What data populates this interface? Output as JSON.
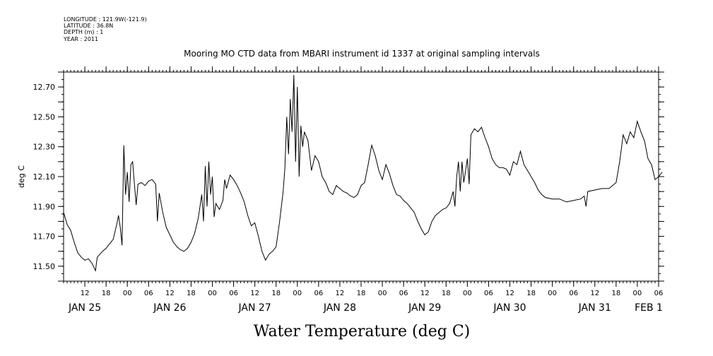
{
  "header": {
    "longitude": "LONGITUDE : 121.9W(-121.9)",
    "latitude": "LATITUDE : 36.8N",
    "depth": "DEPTH (m) : 1",
    "year": "YEAR : 2011"
  },
  "chart_data": {
    "type": "line",
    "title": "Mooring MO CTD data from MBARI instrument id 1337 at original sampling intervals",
    "xlabel": "Water Temperature (deg C)",
    "ylabel": "deg C",
    "ylim": [
      11.4,
      12.8
    ],
    "xlim": [
      "2011-01-25T06:00",
      "2011-02-01T06:00"
    ],
    "y_ticks": [
      "11.50",
      "11.70",
      "11.90",
      "12.10",
      "12.30",
      "12.50",
      "12.70"
    ],
    "x_hour_ticks": [
      "12",
      "18",
      "00",
      "06",
      "12",
      "18",
      "00",
      "06",
      "12",
      "18",
      "00",
      "06",
      "12",
      "18",
      "00",
      "06",
      "12",
      "18",
      "00",
      "06",
      "12",
      "18",
      "00",
      "06",
      "12",
      "18",
      "00",
      "06"
    ],
    "x_day_labels": [
      "JAN 25",
      "JAN 26",
      "JAN 27",
      "JAN 28",
      "JAN 29",
      "JAN 30",
      "JAN 31",
      "FEB 1"
    ],
    "grid": false,
    "series": [
      {
        "values": [
          [
            "2011-01-25T06:00",
            11.86
          ],
          [
            "2011-01-25T07:00",
            11.78
          ],
          [
            "2011-01-25T08:00",
            11.74
          ],
          [
            "2011-01-25T09:00",
            11.66
          ],
          [
            "2011-01-25T10:00",
            11.59
          ],
          [
            "2011-01-25T11:00",
            11.56
          ],
          [
            "2011-01-25T12:00",
            11.54
          ],
          [
            "2011-01-25T13:00",
            11.55
          ],
          [
            "2011-01-25T14:00",
            11.52
          ],
          [
            "2011-01-25T15:00",
            11.47
          ],
          [
            "2011-01-25T15:30",
            11.56
          ],
          [
            "2011-01-25T17:00",
            11.6
          ],
          [
            "2011-01-25T18:00",
            11.62
          ],
          [
            "2011-01-25T19:00",
            11.65
          ],
          [
            "2011-01-25T20:00",
            11.68
          ],
          [
            "2011-01-25T21:00",
            11.78
          ],
          [
            "2011-01-25T21:30",
            11.84
          ],
          [
            "2011-01-25T22:00",
            11.76
          ],
          [
            "2011-01-25T22:30",
            11.64
          ],
          [
            "2011-01-25T23:00",
            12.31
          ],
          [
            "2011-01-25T23:30",
            11.98
          ],
          [
            "2011-01-26T00:00",
            12.13
          ],
          [
            "2011-01-26T00:30",
            11.93
          ],
          [
            "2011-01-26T01:00",
            12.18
          ],
          [
            "2011-01-26T01:30",
            12.2
          ],
          [
            "2011-01-26T02:00",
            12.05
          ],
          [
            "2011-01-26T02:30",
            11.91
          ],
          [
            "2011-01-26T03:00",
            12.05
          ],
          [
            "2011-01-26T04:00",
            12.06
          ],
          [
            "2011-01-26T05:00",
            12.04
          ],
          [
            "2011-01-26T06:00",
            12.07
          ],
          [
            "2011-01-26T07:00",
            12.08
          ],
          [
            "2011-01-26T08:00",
            12.05
          ],
          [
            "2011-01-26T08:30",
            11.8
          ],
          [
            "2011-01-26T09:00",
            11.99
          ],
          [
            "2011-01-26T10:00",
            11.86
          ],
          [
            "2011-01-26T11:00",
            11.76
          ],
          [
            "2011-01-26T12:00",
            11.71
          ],
          [
            "2011-01-26T13:00",
            11.66
          ],
          [
            "2011-01-26T14:00",
            11.63
          ],
          [
            "2011-01-26T15:00",
            11.61
          ],
          [
            "2011-01-26T16:00",
            11.6
          ],
          [
            "2011-01-26T17:00",
            11.62
          ],
          [
            "2011-01-26T18:00",
            11.66
          ],
          [
            "2011-01-26T19:00",
            11.72
          ],
          [
            "2011-01-26T20:00",
            11.82
          ],
          [
            "2011-01-26T21:00",
            11.98
          ],
          [
            "2011-01-26T21:30",
            11.8
          ],
          [
            "2011-01-26T22:00",
            12.17
          ],
          [
            "2011-01-26T22:30",
            11.9
          ],
          [
            "2011-01-26T23:00",
            12.2
          ],
          [
            "2011-01-26T23:30",
            11.98
          ],
          [
            "2011-01-27T00:00",
            12.1
          ],
          [
            "2011-01-27T00:30",
            11.83
          ],
          [
            "2011-01-27T01:00",
            11.92
          ],
          [
            "2011-01-27T02:00",
            11.88
          ],
          [
            "2011-01-27T03:00",
            11.94
          ],
          [
            "2011-01-27T03:30",
            12.08
          ],
          [
            "2011-01-27T04:00",
            12.02
          ],
          [
            "2011-01-27T05:00",
            12.11
          ],
          [
            "2011-01-27T06:00",
            12.08
          ],
          [
            "2011-01-27T07:00",
            12.04
          ],
          [
            "2011-01-27T08:00",
            11.99
          ],
          [
            "2011-01-27T09:00",
            11.93
          ],
          [
            "2011-01-27T10:00",
            11.84
          ],
          [
            "2011-01-27T11:00",
            11.77
          ],
          [
            "2011-01-27T12:00",
            11.79
          ],
          [
            "2011-01-27T13:00",
            11.7
          ],
          [
            "2011-01-27T14:00",
            11.6
          ],
          [
            "2011-01-27T15:00",
            11.54
          ],
          [
            "2011-01-27T16:00",
            11.58
          ],
          [
            "2011-01-27T17:00",
            11.6
          ],
          [
            "2011-01-27T18:00",
            11.63
          ],
          [
            "2011-01-27T19:00",
            11.8
          ],
          [
            "2011-01-27T20:00",
            12.0
          ],
          [
            "2011-01-27T20:30",
            12.16
          ],
          [
            "2011-01-27T21:00",
            12.5
          ],
          [
            "2011-01-27T21:30",
            12.25
          ],
          [
            "2011-01-27T22:00",
            12.62
          ],
          [
            "2011-01-27T22:30",
            12.4
          ],
          [
            "2011-01-27T23:00",
            12.78
          ],
          [
            "2011-01-27T23:30",
            12.2
          ],
          [
            "2011-01-28T00:00",
            12.7
          ],
          [
            "2011-01-28T00:30",
            12.1
          ],
          [
            "2011-01-28T01:00",
            12.44
          ],
          [
            "2011-01-28T01:30",
            12.3
          ],
          [
            "2011-01-28T02:00",
            12.4
          ],
          [
            "2011-01-28T03:00",
            12.34
          ],
          [
            "2011-01-28T04:00",
            12.14
          ],
          [
            "2011-01-28T05:00",
            12.24
          ],
          [
            "2011-01-28T06:00",
            12.2
          ],
          [
            "2011-01-28T07:00",
            12.1
          ],
          [
            "2011-01-28T08:00",
            12.06
          ],
          [
            "2011-01-28T09:00",
            12.0
          ],
          [
            "2011-01-28T10:00",
            11.98
          ],
          [
            "2011-01-28T11:00",
            12.04
          ],
          [
            "2011-01-28T12:00",
            12.02
          ],
          [
            "2011-01-28T13:00",
            12.0
          ],
          [
            "2011-01-28T14:00",
            11.99
          ],
          [
            "2011-01-28T15:00",
            11.97
          ],
          [
            "2011-01-28T16:00",
            11.96
          ],
          [
            "2011-01-28T17:00",
            11.98
          ],
          [
            "2011-01-28T18:00",
            12.04
          ],
          [
            "2011-01-28T19:00",
            12.06
          ],
          [
            "2011-01-28T20:00",
            12.18
          ],
          [
            "2011-01-28T21:00",
            12.31
          ],
          [
            "2011-01-28T22:00",
            12.24
          ],
          [
            "2011-01-28T23:00",
            12.14
          ],
          [
            "2011-01-29T00:00",
            12.08
          ],
          [
            "2011-01-29T01:00",
            12.18
          ],
          [
            "2011-01-29T02:00",
            12.12
          ],
          [
            "2011-01-29T03:00",
            12.04
          ],
          [
            "2011-01-29T04:00",
            11.98
          ],
          [
            "2011-01-29T05:00",
            11.97
          ],
          [
            "2011-01-29T06:00",
            11.94
          ],
          [
            "2011-01-29T07:00",
            11.92
          ],
          [
            "2011-01-29T08:00",
            11.89
          ],
          [
            "2011-01-29T09:00",
            11.86
          ],
          [
            "2011-01-29T10:00",
            11.8
          ],
          [
            "2011-01-29T11:00",
            11.75
          ],
          [
            "2011-01-29T12:00",
            11.71
          ],
          [
            "2011-01-29T13:00",
            11.73
          ],
          [
            "2011-01-29T14:00",
            11.8
          ],
          [
            "2011-01-29T15:00",
            11.84
          ],
          [
            "2011-01-29T16:00",
            11.86
          ],
          [
            "2011-01-29T17:00",
            11.88
          ],
          [
            "2011-01-29T18:00",
            11.89
          ],
          [
            "2011-01-29T19:00",
            11.92
          ],
          [
            "2011-01-29T20:00",
            12.0
          ],
          [
            "2011-01-29T20:30",
            11.9
          ],
          [
            "2011-01-29T21:00",
            12.1
          ],
          [
            "2011-01-29T21:30",
            12.2
          ],
          [
            "2011-01-29T22:00",
            12.0
          ],
          [
            "2011-01-29T22:30",
            12.2
          ],
          [
            "2011-01-29T23:00",
            12.06
          ],
          [
            "2011-01-30T00:00",
            12.22
          ],
          [
            "2011-01-30T00:30",
            12.05
          ],
          [
            "2011-01-30T01:00",
            12.38
          ],
          [
            "2011-01-30T02:00",
            12.42
          ],
          [
            "2011-01-30T03:00",
            12.4
          ],
          [
            "2011-01-30T04:00",
            12.43
          ],
          [
            "2011-01-30T05:00",
            12.36
          ],
          [
            "2011-01-30T06:00",
            12.3
          ],
          [
            "2011-01-30T07:00",
            12.22
          ],
          [
            "2011-01-30T08:00",
            12.18
          ],
          [
            "2011-01-30T09:00",
            12.16
          ],
          [
            "2011-01-30T10:00",
            12.16
          ],
          [
            "2011-01-30T11:00",
            12.15
          ],
          [
            "2011-01-30T12:00",
            12.11
          ],
          [
            "2011-01-30T13:00",
            12.2
          ],
          [
            "2011-01-30T14:00",
            12.18
          ],
          [
            "2011-01-30T15:00",
            12.27
          ],
          [
            "2011-01-30T16:00",
            12.18
          ],
          [
            "2011-01-30T17:00",
            12.14
          ],
          [
            "2011-01-30T18:00",
            12.1
          ],
          [
            "2011-01-30T19:00",
            12.06
          ],
          [
            "2011-01-30T20:00",
            12.01
          ],
          [
            "2011-01-30T21:00",
            11.98
          ],
          [
            "2011-01-30T22:00",
            11.96
          ],
          [
            "2011-01-31T00:00",
            11.95
          ],
          [
            "2011-01-31T02:00",
            11.95
          ],
          [
            "2011-01-31T04:00",
            11.93
          ],
          [
            "2011-01-31T06:00",
            11.94
          ],
          [
            "2011-01-31T08:00",
            11.95
          ],
          [
            "2011-01-31T09:00",
            11.97
          ],
          [
            "2011-01-31T09:30",
            11.9
          ],
          [
            "2011-01-31T10:00",
            12.0
          ],
          [
            "2011-01-31T12:00",
            12.01
          ],
          [
            "2011-01-31T14:00",
            12.02
          ],
          [
            "2011-01-31T16:00",
            12.02
          ],
          [
            "2011-01-31T18:00",
            12.06
          ],
          [
            "2011-01-31T19:00",
            12.2
          ],
          [
            "2011-01-31T20:00",
            12.38
          ],
          [
            "2011-01-31T21:00",
            12.32
          ],
          [
            "2011-01-31T22:00",
            12.4
          ],
          [
            "2011-01-31T23:00",
            12.36
          ],
          [
            "2011-02-01T00:00",
            12.47
          ],
          [
            "2011-02-01T01:00",
            12.4
          ],
          [
            "2011-02-01T02:00",
            12.34
          ],
          [
            "2011-02-01T03:00",
            12.22
          ],
          [
            "2011-02-01T04:00",
            12.18
          ],
          [
            "2011-02-01T05:00",
            12.08
          ],
          [
            "2011-02-01T06:00",
            12.1
          ],
          [
            "2011-02-01T07:00",
            12.13
          ]
        ]
      }
    ]
  }
}
